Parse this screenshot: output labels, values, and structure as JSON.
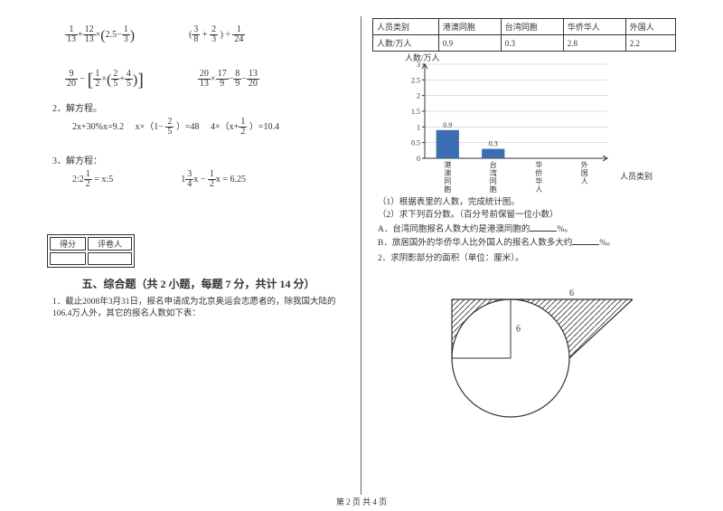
{
  "left": {
    "expr1a": "1/13 + 12/13 × (2.5 − 1/3)",
    "expr1b": "(3/8 + 2/3) ÷ 1/24",
    "expr2a": "9/20 − [1/2 × (2/5 + 4/5)]",
    "expr2b": "20/13 × 17/9 − 8/9 − 13/20",
    "p2label": "2．解方程。",
    "eq2a": "2x+30%x=9.2",
    "eq2b": "x×（1− 2/5 ）=48",
    "eq2c": "4×（x+ 1/2 ）=10.4",
    "p3label": "3．解方程：",
    "eq3a": "2:2 1/2 = x:5",
    "eq3b": "1 3/4 x − 1/2 x = 6.25",
    "scoreHeaders": [
      "得分",
      "评卷人"
    ],
    "sectionTitle": "五、综合题（共 2 小题，每题 7 分，共计 14 分）",
    "para1": "1．截止2008年3月31日，报名申请成为北京奥运会志愿者的，除我国大陆的106.4万人外，其它的报名人数如下表："
  },
  "right": {
    "table": {
      "headers": [
        "人员类别",
        "港澳同胞",
        "台湾同胞",
        "华侨华人",
        "外国人"
      ],
      "row": [
        "人数/万人",
        "0.9",
        "0.3",
        "2.8",
        "2.2"
      ]
    },
    "chart": {
      "yTitle": "人数/万人",
      "xTitle": "人员类别",
      "yTicks": [
        "0",
        "0.5",
        "1",
        "1.5",
        "2",
        "2.5",
        "3"
      ],
      "ymax": 3,
      "categories": [
        "港澳同胞",
        "台湾同胞",
        "华侨华人",
        "外国人"
      ],
      "values": [
        0.9,
        0.3,
        null,
        null
      ],
      "barColor": "#3b6db3",
      "gridColor": "#bfbfbf",
      "axisColor": "#333333",
      "bgColor": "#ffffff"
    },
    "q1": "（1）根据表里的人数，完成统计图。",
    "q2": "（2）求下列百分数。（百分号前保留一位小数）",
    "qA": "A．台湾同胞报名人数大约是港澳同胞的",
    "qApct": "%。",
    "qB": "B．旅居国外的华侨华人比外国人的报名人数多大约",
    "qBpct": "%。",
    "para2": "2．求阴影部分的面积（单位：厘米）。",
    "diagram": {
      "topLabel": "6",
      "radiusLabel": "6",
      "circleStroke": "#333333",
      "hatchStroke": "#333333"
    }
  },
  "footer": "第 2 页 共 4 页"
}
